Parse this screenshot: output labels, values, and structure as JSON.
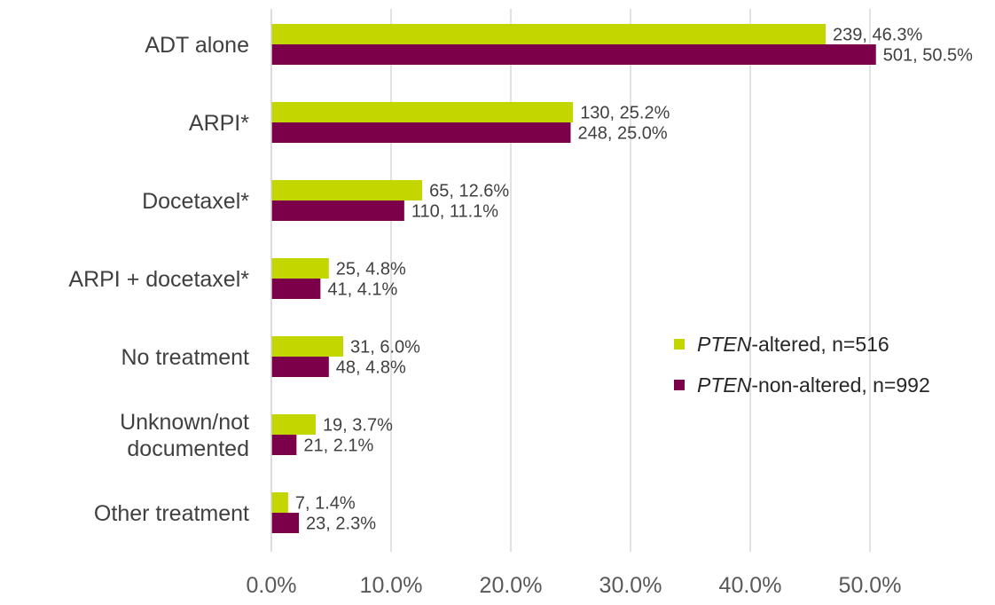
{
  "chart_data": {
    "type": "bar",
    "orientation": "horizontal",
    "categories": [
      [
        "ADT alone"
      ],
      [
        "ARPI*"
      ],
      [
        "Docetaxel*"
      ],
      [
        "ARPI + docetaxel*"
      ],
      [
        "No treatment"
      ],
      [
        "Unknown/not",
        "documented"
      ],
      [
        "Other treatment"
      ]
    ],
    "series": [
      {
        "name_prefix": "PTEN",
        "name_suffix": "-altered, n=516",
        "color": "#c4d600",
        "values": [
          46.3,
          25.2,
          12.6,
          4.8,
          6.0,
          3.7,
          1.4
        ],
        "labels": [
          "239, 46.3%",
          "130, 25.2%",
          "65, 12.6%",
          "25, 4.8%",
          "31, 6.0%",
          "19, 3.7%",
          "7, 1.4%"
        ]
      },
      {
        "name_prefix": "PTEN",
        "name_suffix": "-non-altered, n=992",
        "color": "#7b0049",
        "values": [
          50.5,
          25.0,
          11.1,
          4.1,
          4.8,
          2.1,
          2.3
        ],
        "labels": [
          "501, 50.5%",
          "248, 25.0%",
          "110, 11.1%",
          "41, 4.1%",
          "48, 4.8%",
          "21, 2.1%",
          "23, 2.3%"
        ]
      }
    ],
    "xlim": [
      0,
      55
    ],
    "xticks": [
      0,
      10,
      20,
      30,
      40,
      50
    ],
    "xtick_labels": [
      "0.0%",
      "10.0%",
      "20.0%",
      "30.0%",
      "40.0%",
      "50.0%"
    ],
    "grid": true,
    "legend_position": "right-middle"
  }
}
